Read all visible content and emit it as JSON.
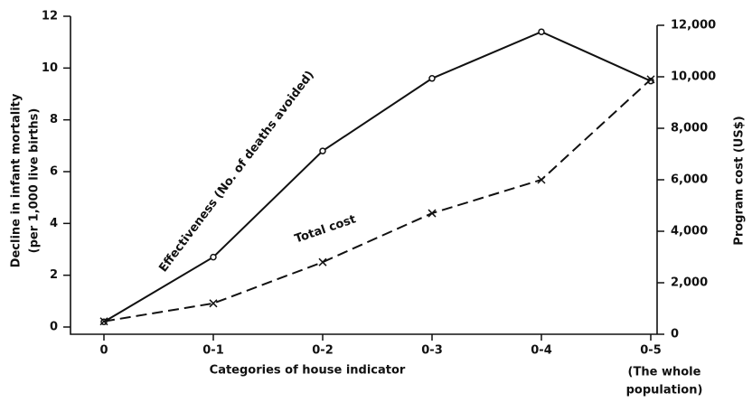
{
  "chart_data": {
    "type": "line",
    "categories": [
      "0",
      "0-1",
      "0-2",
      "0-3",
      "0-4",
      "0-5"
    ],
    "xlabel": "Categories of house indicator",
    "xnote": [
      "(The whole",
      "population)"
    ],
    "ylabel": [
      "Decline in infant mortality",
      "(per 1,000 live births)"
    ],
    "y2label": "Program cost (US$)",
    "ylim": [
      0,
      12
    ],
    "yticks": [
      0,
      2,
      4,
      6,
      8,
      10,
      12
    ],
    "y2lim": [
      0,
      12000
    ],
    "y2ticks": [
      0,
      {
        "value": 2000,
        "label": "2,000"
      },
      {
        "value": 4000,
        "label": "4,000"
      },
      {
        "value": 6000,
        "label": "6,000"
      },
      {
        "value": 8000,
        "label": "8,000"
      },
      {
        "value": 10000,
        "label": "10,000"
      },
      {
        "value": 12000,
        "label": "12,000"
      }
    ],
    "series": [
      {
        "name": "Effectiveness (No. of deaths avoided)",
        "color": "#111111",
        "values": [
          0.2,
          2.7,
          6.8,
          9.6,
          11.4,
          9.5
        ]
      },
      {
        "name": "Total cost",
        "color": "#111111",
        "axis": "y2",
        "values": [
          500,
          1200,
          2800,
          4700,
          6000,
          9900
        ]
      }
    ]
  }
}
